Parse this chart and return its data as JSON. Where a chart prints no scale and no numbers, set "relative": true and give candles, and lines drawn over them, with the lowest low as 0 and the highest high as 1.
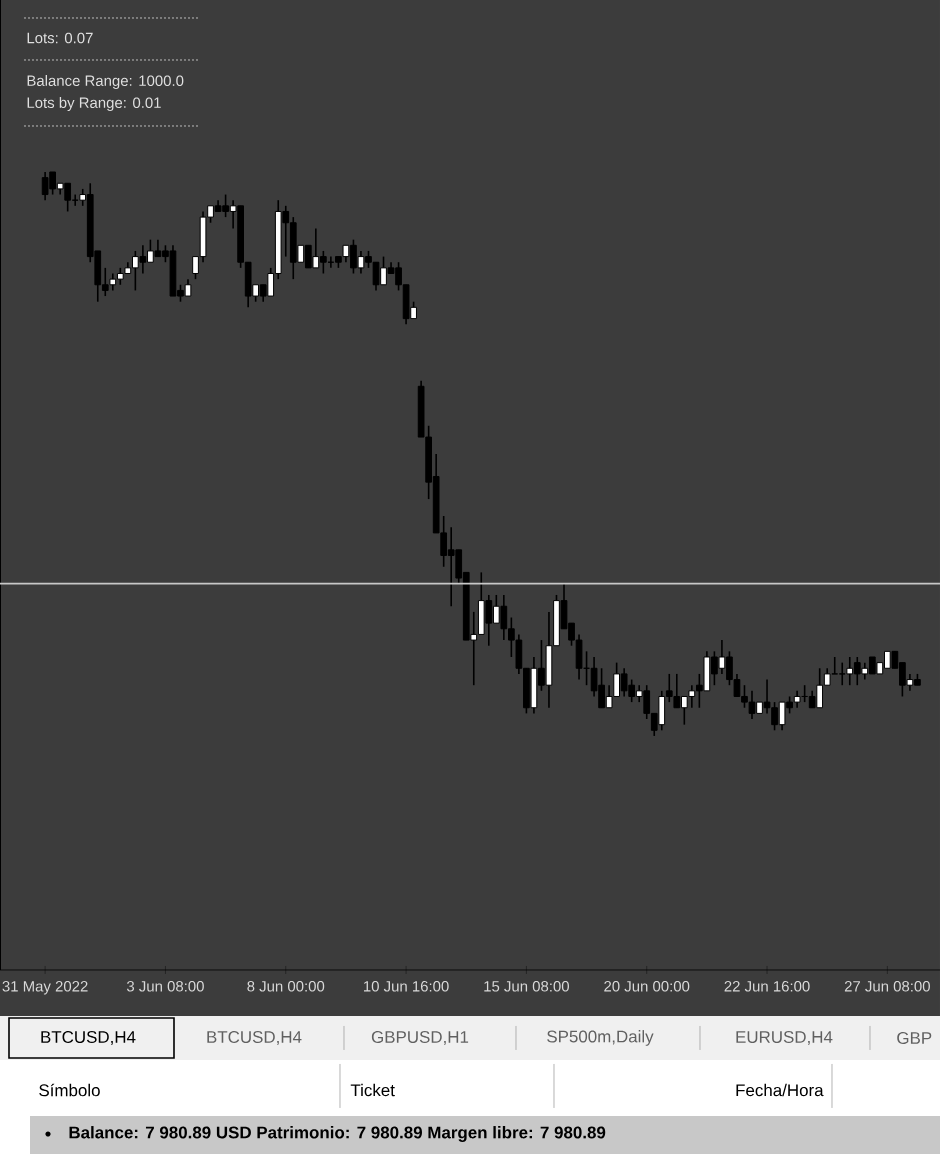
{
  "chart_data": {
    "type": "candlestick",
    "relative": true,
    "categories": [
      "31 May 2022",
      null,
      null,
      null,
      null,
      null,
      null,
      null,
      null,
      null,
      null,
      null,
      null,
      null,
      null,
      null,
      "3 Jun 08:00",
      null,
      null,
      null,
      null,
      null,
      null,
      null,
      null,
      null,
      null,
      null,
      null,
      null,
      null,
      null,
      "8 Jun 00:00",
      null,
      null,
      null,
      null,
      null,
      null,
      null,
      null,
      null,
      null,
      null,
      null,
      null,
      null,
      null,
      "10 Jun 16:00",
      null,
      null,
      null,
      null,
      null,
      null,
      null,
      null,
      null,
      null,
      null,
      null,
      null,
      null,
      null,
      "15 Jun 08:00",
      null,
      null,
      null,
      null,
      null,
      null,
      null,
      null,
      null,
      null,
      null,
      null,
      null,
      null,
      null,
      "20 Jun 00:00",
      null,
      null,
      null,
      null,
      null,
      null,
      null,
      null,
      null,
      null,
      null,
      null,
      null,
      null,
      null,
      "22 Jun 16:00",
      null,
      null,
      null,
      null,
      null,
      null,
      null,
      null,
      null,
      null,
      null,
      null,
      null,
      null,
      null,
      "27 Jun 08:00",
      null,
      null,
      null,
      null
    ],
    "ohlc": [
      [
        0.99,
        1.0,
        0.95,
        0.96
      ],
      [
        1.0,
        1.0,
        0.96,
        0.97
      ],
      [
        0.97,
        0.98,
        0.96,
        0.98
      ],
      [
        0.98,
        0.98,
        0.93,
        0.95
      ],
      [
        0.95,
        0.96,
        0.94,
        0.95
      ],
      [
        0.95,
        0.97,
        0.94,
        0.96
      ],
      [
        0.96,
        0.98,
        0.84,
        0.85
      ],
      [
        0.86,
        0.86,
        0.77,
        0.8
      ],
      [
        0.8,
        0.83,
        0.78,
        0.79
      ],
      [
        0.8,
        0.82,
        0.79,
        0.81
      ],
      [
        0.81,
        0.83,
        0.8,
        0.82
      ],
      [
        0.82,
        0.84,
        0.82,
        0.83
      ],
      [
        0.83,
        0.86,
        0.79,
        0.85
      ],
      [
        0.85,
        0.87,
        0.82,
        0.84
      ],
      [
        0.84,
        0.88,
        0.84,
        0.86
      ],
      [
        0.86,
        0.88,
        0.85,
        0.85
      ],
      [
        0.86,
        0.87,
        0.84,
        0.85
      ],
      [
        0.86,
        0.87,
        0.78,
        0.78
      ],
      [
        0.79,
        0.8,
        0.77,
        0.78
      ],
      [
        0.78,
        0.81,
        0.78,
        0.8
      ],
      [
        0.82,
        0.85,
        0.81,
        0.85
      ],
      [
        0.85,
        0.93,
        0.84,
        0.92
      ],
      [
        0.92,
        0.94,
        0.91,
        0.94
      ],
      [
        0.94,
        0.95,
        0.93,
        0.93
      ],
      [
        0.94,
        0.96,
        0.92,
        0.93
      ],
      [
        0.93,
        0.95,
        0.9,
        0.94
      ],
      [
        0.94,
        0.94,
        0.83,
        0.84
      ],
      [
        0.84,
        0.84,
        0.76,
        0.78
      ],
      [
        0.78,
        0.8,
        0.77,
        0.8
      ],
      [
        0.8,
        0.8,
        0.77,
        0.78
      ],
      [
        0.78,
        0.83,
        0.78,
        0.82
      ],
      [
        0.82,
        0.95,
        0.81,
        0.93
      ],
      [
        0.93,
        0.94,
        0.85,
        0.91
      ],
      [
        0.91,
        0.92,
        0.81,
        0.84
      ],
      [
        0.84,
        0.87,
        0.84,
        0.87
      ],
      [
        0.87,
        0.87,
        0.83,
        0.83
      ],
      [
        0.83,
        0.9,
        0.83,
        0.85
      ],
      [
        0.85,
        0.86,
        0.82,
        0.84
      ],
      [
        0.84,
        0.85,
        0.83,
        0.84
      ],
      [
        0.85,
        0.85,
        0.83,
        0.84
      ],
      [
        0.85,
        0.87,
        0.84,
        0.87
      ],
      [
        0.87,
        0.88,
        0.82,
        0.83
      ],
      [
        0.83,
        0.86,
        0.82,
        0.85
      ],
      [
        0.85,
        0.86,
        0.83,
        0.84
      ],
      [
        0.84,
        0.84,
        0.79,
        0.8
      ],
      [
        0.8,
        0.85,
        0.8,
        0.83
      ],
      [
        0.83,
        0.84,
        0.82,
        0.82
      ],
      [
        0.83,
        0.84,
        0.79,
        0.8
      ],
      [
        0.8,
        0.8,
        0.73,
        0.74
      ],
      [
        0.74,
        0.77,
        0.74,
        0.76
      ],
      [
        0.62,
        0.63,
        0.53,
        0.53
      ],
      [
        0.53,
        0.55,
        0.42,
        0.45
      ],
      [
        0.46,
        0.5,
        0.36,
        0.36
      ],
      [
        0.36,
        0.39,
        0.3,
        0.32
      ],
      [
        0.33,
        0.37,
        0.23,
        0.32
      ],
      [
        0.33,
        0.33,
        0.27,
        0.28
      ],
      [
        0.29,
        0.29,
        0.17,
        0.17
      ],
      [
        0.17,
        0.22,
        0.09,
        0.18
      ],
      [
        0.18,
        0.29,
        0.18,
        0.24
      ],
      [
        0.24,
        0.25,
        0.16,
        0.2
      ],
      [
        0.2,
        0.25,
        0.2,
        0.23
      ],
      [
        0.23,
        0.25,
        0.17,
        0.19
      ],
      [
        0.19,
        0.21,
        0.14,
        0.17
      ],
      [
        0.17,
        0.18,
        0.11,
        0.12
      ],
      [
        0.12,
        0.12,
        0.04,
        0.05
      ],
      [
        0.05,
        0.14,
        0.04,
        0.12
      ],
      [
        0.12,
        0.17,
        0.08,
        0.09
      ],
      [
        0.09,
        0.22,
        0.05,
        0.16
      ],
      [
        0.16,
        0.25,
        0.16,
        0.24
      ],
      [
        0.24,
        0.27,
        0.19,
        0.19
      ],
      [
        0.2,
        0.2,
        0.16,
        0.17
      ],
      [
        0.17,
        0.18,
        0.1,
        0.12
      ],
      [
        0.12,
        0.15,
        0.09,
        0.12
      ],
      [
        0.12,
        0.14,
        0.07,
        0.08
      ],
      [
        0.09,
        0.12,
        0.05,
        0.05
      ],
      [
        0.05,
        0.09,
        0.05,
        0.07
      ],
      [
        0.07,
        0.13,
        0.07,
        0.11
      ],
      [
        0.11,
        0.12,
        0.07,
        0.08
      ],
      [
        0.09,
        0.1,
        0.06,
        0.07
      ],
      [
        0.07,
        0.09,
        0.06,
        0.08
      ],
      [
        0.08,
        0.09,
        0.03,
        0.04
      ],
      [
        0.04,
        0.04,
        0.0,
        0.01
      ],
      [
        0.02,
        0.08,
        0.01,
        0.07
      ],
      [
        0.08,
        0.11,
        0.06,
        0.07
      ],
      [
        0.07,
        0.11,
        0.05,
        0.05
      ],
      [
        0.05,
        0.07,
        0.02,
        0.07
      ],
      [
        0.07,
        0.09,
        0.05,
        0.08
      ],
      [
        0.09,
        0.11,
        0.05,
        0.08
      ],
      [
        0.08,
        0.15,
        0.08,
        0.14
      ],
      [
        0.14,
        0.15,
        0.09,
        0.11
      ],
      [
        0.12,
        0.17,
        0.11,
        0.14
      ],
      [
        0.14,
        0.15,
        0.09,
        0.1
      ],
      [
        0.1,
        0.11,
        0.07,
        0.07
      ],
      [
        0.07,
        0.09,
        0.05,
        0.06
      ],
      [
        0.06,
        0.08,
        0.03,
        0.04
      ],
      [
        0.04,
        0.06,
        0.04,
        0.06
      ],
      [
        0.06,
        0.1,
        0.04,
        0.05
      ],
      [
        0.05,
        0.06,
        0.01,
        0.02
      ],
      [
        0.02,
        0.06,
        0.01,
        0.06
      ],
      [
        0.06,
        0.07,
        0.04,
        0.05
      ],
      [
        0.06,
        0.08,
        0.05,
        0.07
      ],
      [
        0.07,
        0.09,
        0.06,
        0.07
      ],
      [
        0.07,
        0.08,
        0.05,
        0.05
      ],
      [
        0.05,
        0.12,
        0.05,
        0.09
      ],
      [
        0.09,
        0.12,
        0.09,
        0.11
      ],
      [
        0.11,
        0.14,
        0.11,
        0.11
      ],
      [
        0.11,
        0.13,
        0.09,
        0.11
      ],
      [
        0.11,
        0.14,
        0.09,
        0.12
      ],
      [
        0.13,
        0.14,
        0.09,
        0.11
      ],
      [
        0.11,
        0.13,
        0.1,
        0.12
      ],
      [
        0.14,
        0.14,
        0.11,
        0.11
      ],
      [
        0.11,
        0.13,
        0.11,
        0.13
      ],
      [
        0.12,
        0.15,
        0.12,
        0.15
      ],
      [
        0.15,
        0.15,
        0.12,
        0.12
      ],
      [
        0.13,
        0.13,
        0.07,
        0.09
      ],
      [
        0.09,
        0.11,
        0.08,
        0.1
      ],
      [
        0.1,
        0.11,
        0.09,
        0.09
      ]
    ],
    "ref_lines": [
      {
        "axis": "y",
        "value": 0.27,
        "color": "#c8c8c8"
      }
    ],
    "annotations": [
      "Lots: 0.07",
      "Balance Range: 1000.0",
      "Lots by Range: 0.01",
      "BTCUSD,H4",
      "BTCUSD,H4",
      "GBPUSD,H1",
      "SP500m,Daily",
      "EURUSD,H4",
      "GBP",
      "Símbolo",
      "Ticket",
      "Fecha/Hora",
      "Balance: 7 980.89 USD  Patrimonio: 7 980.89  Margen libre: 7 980.89"
    ]
  }
}
